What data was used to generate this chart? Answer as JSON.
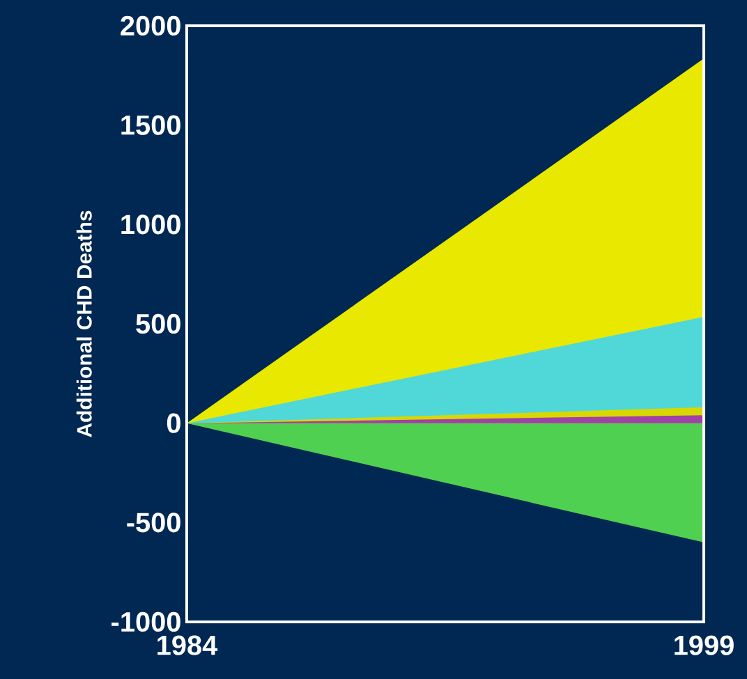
{
  "chart_data": {
    "type": "area",
    "ylabel": "Additional CHD Deaths",
    "x": [
      1984,
      1999
    ],
    "xlim": [
      1984,
      1999
    ],
    "xticks": [
      1984,
      1999
    ],
    "ylim": [
      -1000,
      2000
    ],
    "yticks": [
      -1000,
      -500,
      0,
      500,
      1000,
      1500,
      2000
    ],
    "series": [
      {
        "color": "#50d050",
        "values": [
          0,
          -600
        ]
      },
      {
        "color": "#e8e800",
        "values": [
          0,
          1835
        ]
      },
      {
        "color": "#50d8d8",
        "values": [
          0,
          535
        ]
      },
      {
        "color": "#d8d800",
        "values": [
          0,
          80
        ]
      },
      {
        "color": "#a040a8",
        "values": [
          0,
          40
        ]
      }
    ]
  }
}
